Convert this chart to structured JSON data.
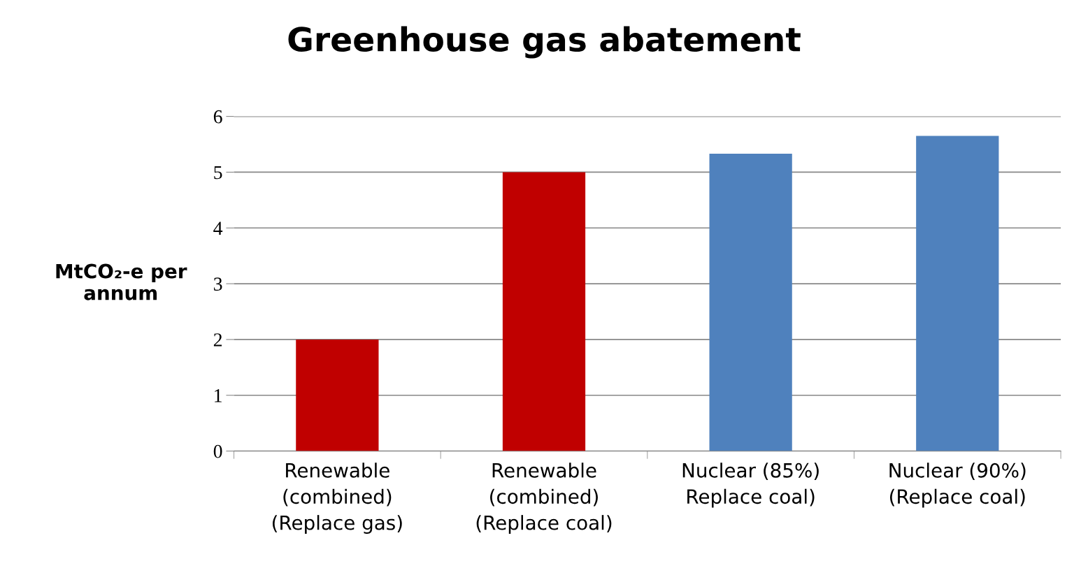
{
  "chart_data": {
    "type": "bar",
    "title": "Greenhouse gas abatement",
    "ylabel": "MtCO₂-e per\nannum",
    "categories": [
      "Renewable\n(combined)\n(Replace gas)",
      "Renewable\n(combined)\n(Replace coal)",
      "Nuclear (85%)\nReplace coal)",
      "Nuclear (90%)\n(Replace coal)"
    ],
    "values": [
      2.0,
      5.0,
      5.33,
      5.65
    ],
    "colors": [
      "#c00000",
      "#c00000",
      "#4f81bd",
      "#4f81bd"
    ],
    "ylim": [
      0,
      6
    ],
    "yticks": [
      0,
      1,
      2,
      3,
      4,
      5,
      6
    ],
    "grid": "y"
  }
}
